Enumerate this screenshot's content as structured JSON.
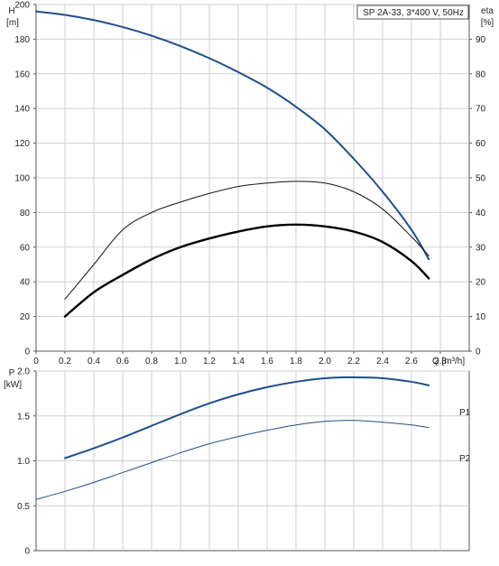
{
  "chart_data": [
    {
      "type": "line",
      "title": "SP 2A-33, 3*400 V, 50Hz",
      "xlabel": "Q [m³/h]",
      "ylabel": "H",
      "ylabel_unit": "[m]",
      "ylabel_right": "eta",
      "ylabel_right_unit": "[%]",
      "xlim": [
        0,
        3.0
      ],
      "ylim": [
        0,
        200
      ],
      "ylim_right": [
        0,
        100
      ],
      "grid": true,
      "x_ticks": [
        "0",
        "0.2",
        "0.4",
        "0.6",
        "0.8",
        "1.0",
        "1.2",
        "1.4",
        "1.6",
        "1.8",
        "2.0",
        "2.2",
        "2.4",
        "2.6",
        "2.8"
      ],
      "y_ticks": [
        "0",
        "20",
        "40",
        "60",
        "80",
        "100",
        "120",
        "140",
        "160",
        "180",
        "200"
      ],
      "y_ticks_right": [
        "0",
        "10",
        "20",
        "30",
        "40",
        "50",
        "60",
        "70",
        "80",
        "90"
      ],
      "series": [
        {
          "role": "head",
          "axis": "left",
          "color": "#1f4e8c",
          "x": [
            0,
            0.2,
            0.4,
            0.6,
            0.8,
            1.0,
            1.2,
            1.4,
            1.6,
            1.8,
            2.0,
            2.2,
            2.4,
            2.6,
            2.72
          ],
          "values": [
            196,
            194,
            191,
            187,
            182,
            176,
            169,
            161,
            152,
            141,
            128,
            111,
            92,
            70,
            53
          ]
        },
        {
          "role": "eta-upper",
          "axis": "right",
          "color": "#111111",
          "x": [
            0.2,
            0.4,
            0.6,
            0.8,
            1.0,
            1.2,
            1.4,
            1.6,
            1.8,
            2.0,
            2.2,
            2.4,
            2.6,
            2.72
          ],
          "values": [
            15,
            25,
            35,
            40,
            43,
            45.5,
            47.5,
            48.5,
            49,
            48.5,
            46,
            41,
            33,
            27.5
          ]
        },
        {
          "role": "eta-lower",
          "axis": "right",
          "color": "#000000",
          "x": [
            0.2,
            0.4,
            0.6,
            0.8,
            1.0,
            1.2,
            1.4,
            1.6,
            1.8,
            2.0,
            2.2,
            2.4,
            2.6,
            2.72
          ],
          "values": [
            10,
            17,
            22,
            26.5,
            30,
            32.5,
            34.5,
            36,
            36.5,
            36,
            34.5,
            31.5,
            26,
            21
          ]
        }
      ]
    },
    {
      "type": "line",
      "xlabel": "",
      "ylabel": "P",
      "ylabel_unit": "[kW]",
      "xlim": [
        0,
        3.0
      ],
      "ylim": [
        0,
        2.0
      ],
      "grid": true,
      "y_ticks": [
        "0",
        "0.5",
        "1.0",
        "1.5",
        "2.0"
      ],
      "series": [
        {
          "name": "P1",
          "color": "#1f4e8c",
          "x": [
            0.2,
            0.4,
            0.6,
            0.8,
            1.0,
            1.2,
            1.4,
            1.6,
            1.8,
            2.0,
            2.2,
            2.4,
            2.6,
            2.72
          ],
          "values": [
            1.03,
            1.14,
            1.26,
            1.39,
            1.52,
            1.64,
            1.74,
            1.82,
            1.88,
            1.92,
            1.93,
            1.92,
            1.88,
            1.84
          ]
        },
        {
          "name": "P2",
          "color": "#1f4e8c",
          "x": [
            0,
            0.2,
            0.4,
            0.6,
            0.8,
            1.0,
            1.2,
            1.4,
            1.6,
            1.8,
            2.0,
            2.2,
            2.4,
            2.6,
            2.72
          ],
          "values": [
            0.57,
            0.66,
            0.76,
            0.87,
            0.98,
            1.09,
            1.19,
            1.27,
            1.34,
            1.4,
            1.44,
            1.45,
            1.43,
            1.4,
            1.37
          ]
        }
      ]
    }
  ]
}
